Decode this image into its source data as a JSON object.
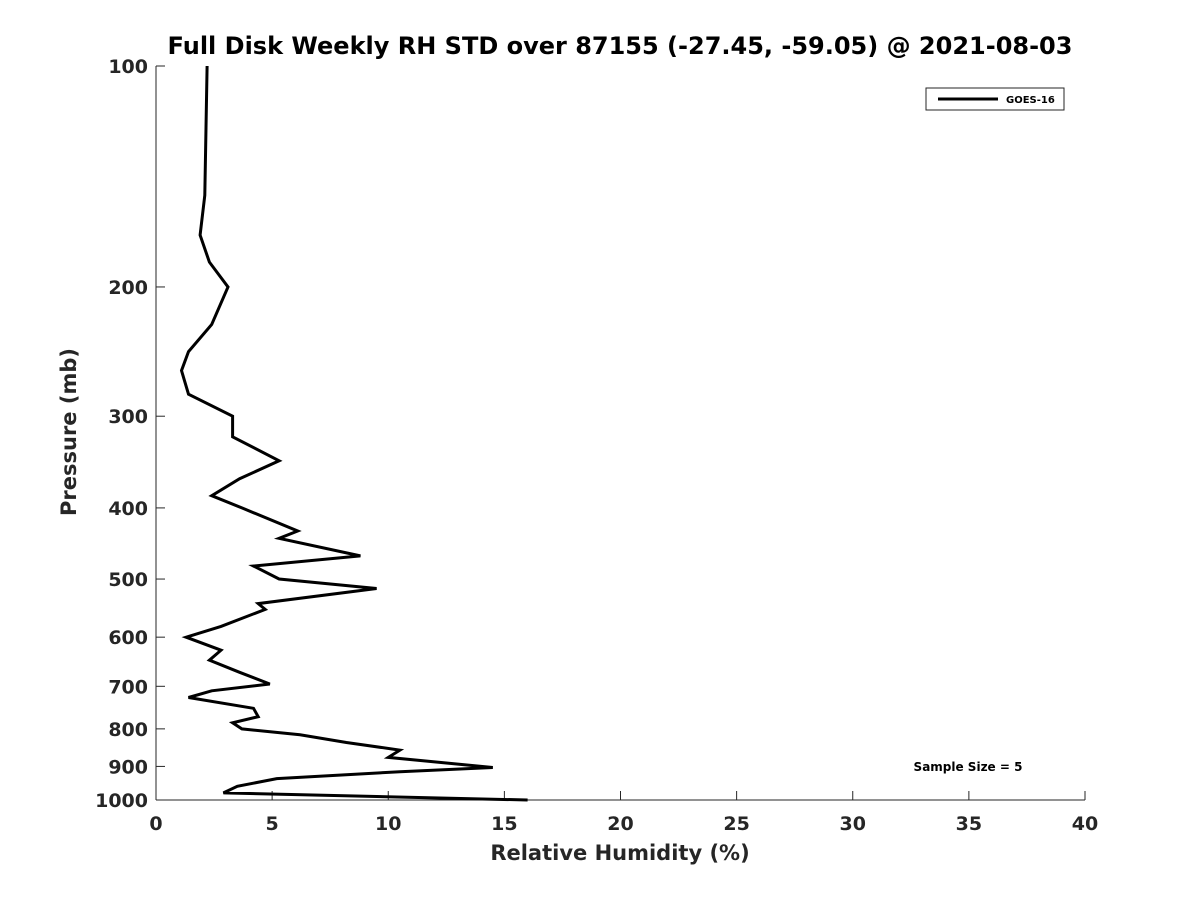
{
  "chart_data": {
    "type": "line",
    "title": "Full Disk Weekly RH STD over 87155 (-27.45, -59.05) @ 2021-08-03",
    "xlabel": "Relative Humidity (%)",
    "ylabel": "Pressure (mb)",
    "xlim": [
      0,
      40
    ],
    "ylim": [
      100,
      1000
    ],
    "y_scale": "log",
    "y_reversed": true,
    "grid": false,
    "x_ticks": [
      0,
      5,
      10,
      15,
      20,
      25,
      30,
      35,
      40
    ],
    "x_tick_labels": [
      "0",
      "5",
      "10",
      "15",
      "20",
      "25",
      "30",
      "35",
      "40"
    ],
    "y_ticks": [
      100,
      200,
      300,
      400,
      500,
      600,
      700,
      800,
      900,
      1000
    ],
    "y_tick_labels": [
      "100",
      "200",
      "300",
      "400",
      "500",
      "600",
      "700",
      "800",
      "900",
      "1000"
    ],
    "legend": {
      "position": "top-right",
      "entries": [
        "GOES-16"
      ]
    },
    "annotation": "Sample Size = 5",
    "series": [
      {
        "name": "GOES-16",
        "color": "#000000",
        "points": [
          [
            2.2,
            100
          ],
          [
            2.1,
            150
          ],
          [
            1.9,
            170
          ],
          [
            2.3,
            185
          ],
          [
            3.1,
            200
          ],
          [
            2.4,
            225
          ],
          [
            1.4,
            245
          ],
          [
            1.1,
            260
          ],
          [
            1.4,
            280
          ],
          [
            3.3,
            300
          ],
          [
            3.3,
            320
          ],
          [
            5.3,
            345
          ],
          [
            3.6,
            365
          ],
          [
            2.4,
            385
          ],
          [
            3.7,
            400
          ],
          [
            6.1,
            430
          ],
          [
            5.3,
            440
          ],
          [
            8.8,
            465
          ],
          [
            4.2,
            480
          ],
          [
            5.3,
            500
          ],
          [
            9.5,
            515
          ],
          [
            4.4,
            540
          ],
          [
            4.7,
            550
          ],
          [
            2.8,
            580
          ],
          [
            1.3,
            600
          ],
          [
            2.8,
            625
          ],
          [
            2.3,
            645
          ],
          [
            3.6,
            670
          ],
          [
            4.9,
            695
          ],
          [
            2.4,
            710
          ],
          [
            1.4,
            725
          ],
          [
            4.2,
            750
          ],
          [
            4.4,
            770
          ],
          [
            3.3,
            785
          ],
          [
            3.7,
            800
          ],
          [
            6.2,
            815
          ],
          [
            8.2,
            835
          ],
          [
            10.5,
            855
          ],
          [
            10.0,
            875
          ],
          [
            14.5,
            903
          ],
          [
            10.5,
            915
          ],
          [
            5.2,
            935
          ],
          [
            3.5,
            958
          ],
          [
            2.9,
            978
          ],
          [
            16.0,
            1000
          ]
        ]
      }
    ]
  }
}
